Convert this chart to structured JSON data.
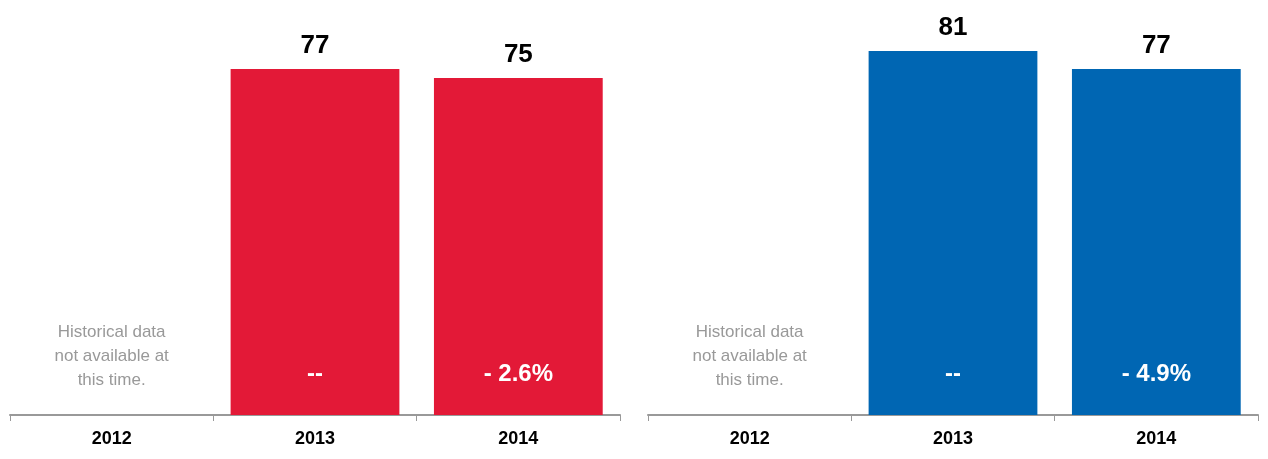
{
  "chart_data": [
    {
      "type": "bar",
      "categories": [
        "2012",
        "2013",
        "2014"
      ],
      "series": [
        {
          "color": "#e31937",
          "values": [
            null,
            77,
            75
          ]
        }
      ],
      "data_labels": true,
      "tick_labels": "x",
      "annotations": [
        "Historical data\nnot available at\nthis time.",
        "--",
        "- 2.6%"
      ]
    },
    {
      "type": "bar",
      "categories": [
        "2012",
        "2013",
        "2014"
      ],
      "series": [
        {
          "color": "#0066b3",
          "values": [
            null,
            81,
            77
          ]
        }
      ],
      "data_labels": true,
      "tick_labels": "x",
      "annotations": [
        "Historical data\nnot available at\nthis time.",
        "--",
        "- 4.9%"
      ]
    }
  ]
}
